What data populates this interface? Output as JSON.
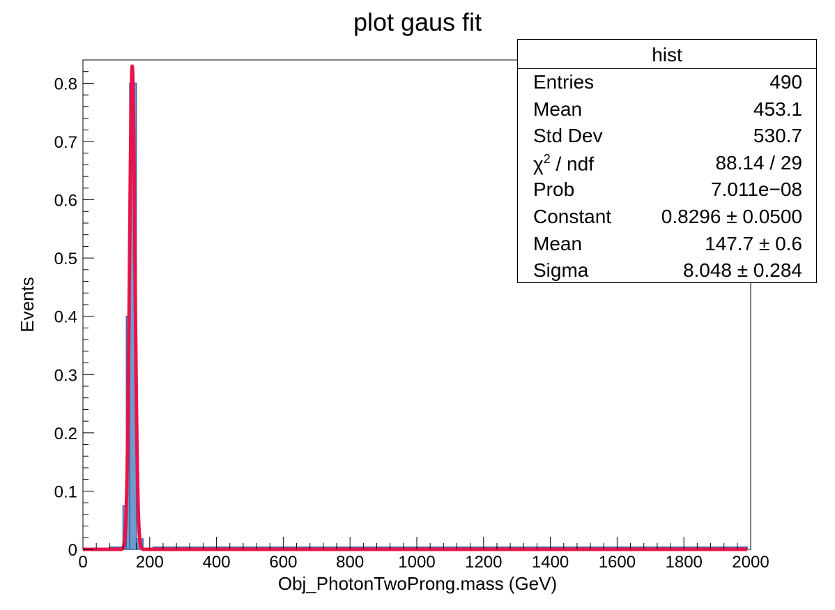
{
  "chart_data": {
    "type": "bar",
    "title": "plot gaus fit",
    "xlabel": "Obj_PhotonTwoProng.mass (GeV)",
    "ylabel": "Events",
    "xlim": [
      0,
      2000
    ],
    "ylim": [
      0,
      0.84
    ],
    "x_ticks": [
      0,
      200,
      400,
      600,
      800,
      1000,
      1200,
      1400,
      1600,
      1800,
      2000
    ],
    "x_tick_labels": [
      "0",
      "200",
      "400",
      "600",
      "800",
      "1000",
      "1200",
      "1400",
      "1600",
      "1800",
      "2000"
    ],
    "y_ticks": [
      0,
      0.1,
      0.2,
      0.3,
      0.4,
      0.5,
      0.6,
      0.7,
      0.8
    ],
    "y_tick_labels": [
      "0",
      "0.1",
      "0.2",
      "0.3",
      "0.4",
      "0.5",
      "0.6",
      "0.7",
      "0.8"
    ],
    "bin_width": 20,
    "histogram": {
      "bins": [
        {
          "x0": 0,
          "x1": 80,
          "value": 0.0
        },
        {
          "x0": 80,
          "x1": 100,
          "value": 0.004
        },
        {
          "x0": 100,
          "x1": 120,
          "value": 0.004
        },
        {
          "x0": 120,
          "x1": 130,
          "value": 0.075
        },
        {
          "x0": 130,
          "x1": 140,
          "value": 0.4
        },
        {
          "x0": 140,
          "x1": 160,
          "value": 0.8
        },
        {
          "x0": 160,
          "x1": 180,
          "value": 0.018
        },
        {
          "x0": 180,
          "x1": 210,
          "value": 0.0
        },
        {
          "x0": 210,
          "x1": 1990,
          "value": 0.004
        }
      ],
      "fill_color": "#6f9bcd",
      "line_color": "#3b68a8"
    },
    "fit": {
      "function": "gaus",
      "constant": 0.8296,
      "mean": 147.7,
      "sigma": 8.048,
      "range": [
        0,
        1990
      ],
      "color": "#e8134a"
    },
    "grid": false,
    "legend_position": "top-right"
  },
  "stats": {
    "name": "hist",
    "rows": [
      {
        "label": "Entries",
        "value": "490"
      },
      {
        "label": "Mean",
        "value": "453.1"
      },
      {
        "label": "Std Dev",
        "value": "530.7"
      },
      {
        "label_pre": "χ",
        "label_sup": "2",
        "label_post": " / ndf",
        "value": "88.14 / 29"
      },
      {
        "label": "Prob",
        "value": "7.011e−08"
      },
      {
        "label": "Constant",
        "value": "0.8296 ± 0.0500"
      },
      {
        "label": "Mean",
        "value": "147.7 ± 0.6"
      },
      {
        "label": "Sigma",
        "value": "8.048 ± 0.284"
      }
    ]
  }
}
